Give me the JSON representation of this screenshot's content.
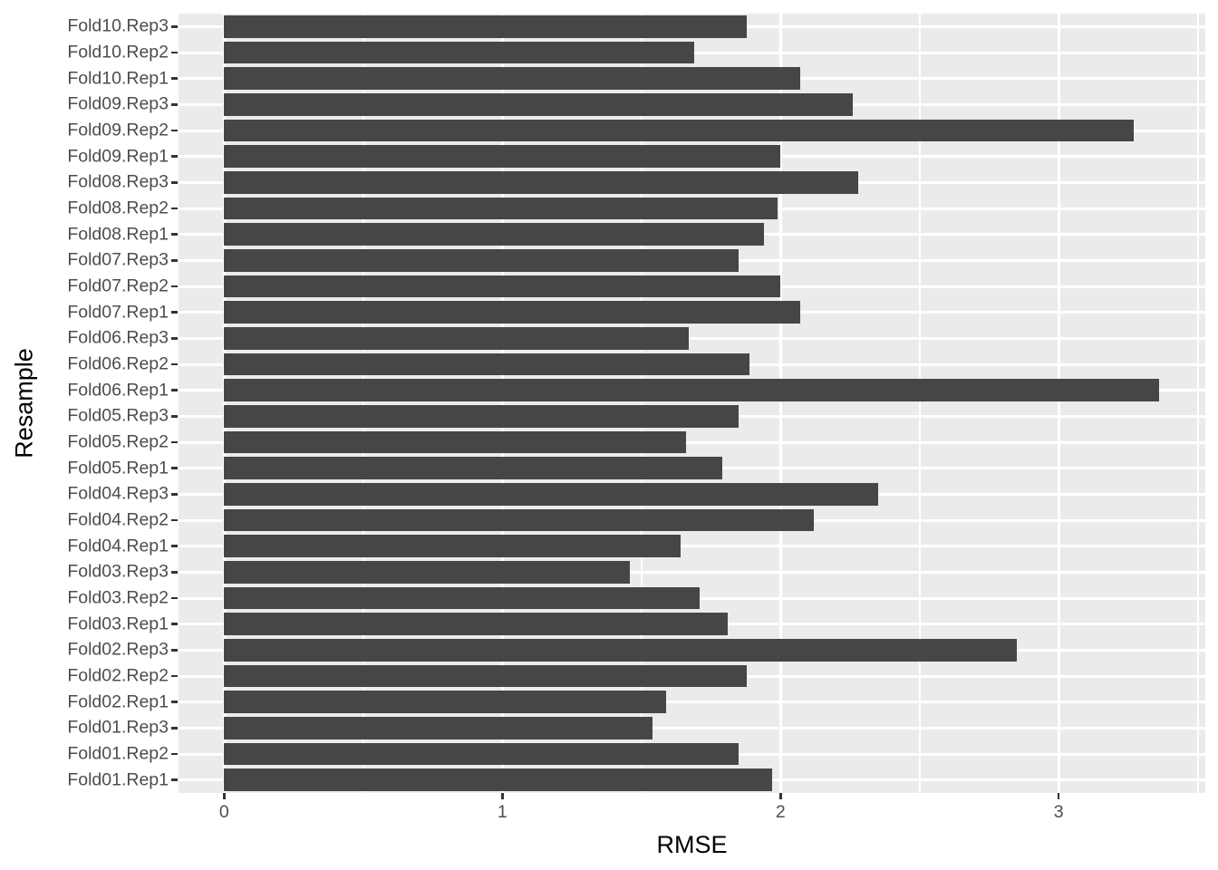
{
  "figure": {
    "type": "ggplot-style horizontal bar chart",
    "background": "#FFFFFF"
  },
  "chart_data": {
    "type": "bar",
    "orientation": "horizontal",
    "xlabel": "RMSE",
    "ylabel": "Resample",
    "categories_top_to_bottom": [
      "Fold10.Rep3",
      "Fold10.Rep2",
      "Fold10.Rep1",
      "Fold09.Rep3",
      "Fold09.Rep2",
      "Fold09.Rep1",
      "Fold08.Rep3",
      "Fold08.Rep2",
      "Fold08.Rep1",
      "Fold07.Rep3",
      "Fold07.Rep2",
      "Fold07.Rep1",
      "Fold06.Rep3",
      "Fold06.Rep2",
      "Fold06.Rep1",
      "Fold05.Rep3",
      "Fold05.Rep2",
      "Fold05.Rep1",
      "Fold04.Rep3",
      "Fold04.Rep2",
      "Fold04.Rep1",
      "Fold03.Rep3",
      "Fold03.Rep2",
      "Fold03.Rep1",
      "Fold02.Rep3",
      "Fold02.Rep2",
      "Fold02.Rep1",
      "Fold01.Rep3",
      "Fold01.Rep2",
      "Fold01.Rep1"
    ],
    "values": [
      1.88,
      1.69,
      2.07,
      2.26,
      3.27,
      2.0,
      2.28,
      1.99,
      1.94,
      1.85,
      2.0,
      2.07,
      1.67,
      1.89,
      3.36,
      1.85,
      1.66,
      1.79,
      2.35,
      2.12,
      1.64,
      1.46,
      1.71,
      1.81,
      2.85,
      1.88,
      1.59,
      1.54,
      1.85,
      1.97
    ],
    "xlim": [
      -0.164,
      3.527
    ],
    "x_major_ticks": [
      0,
      1,
      2,
      3
    ],
    "x_tick_labels": [
      "0",
      "1",
      "2",
      "3"
    ],
    "x_minor_gridlines": [
      0.5,
      1.5,
      2.5,
      3.5
    ],
    "grid": true,
    "legend_position": "none",
    "colors": {
      "bar": "#464646",
      "panel_background": "#EBEBEB",
      "gridline": "#FFFFFF",
      "tick_label": "#4D4D4D",
      "axis_title": "#000000",
      "tick_mark": "#333333"
    }
  }
}
